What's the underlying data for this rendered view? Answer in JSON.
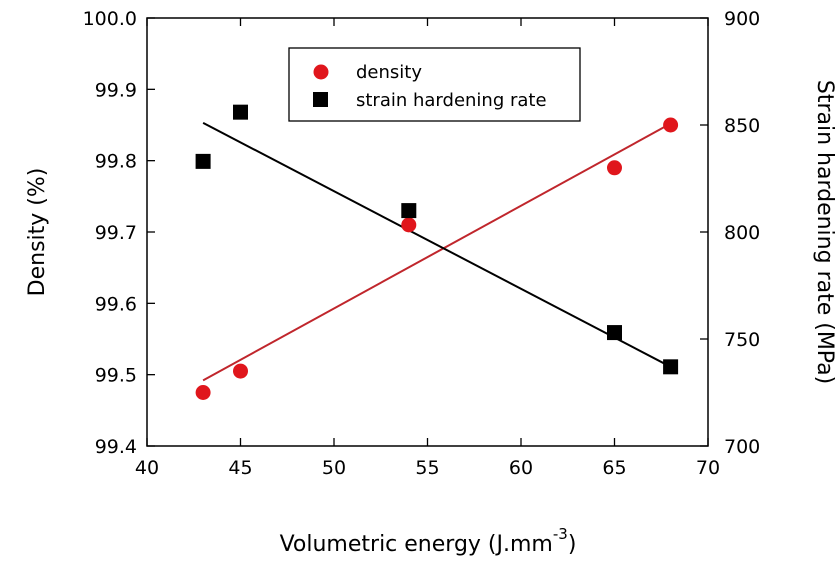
{
  "chart_data": {
    "type": "scatter",
    "title": "",
    "xlabel": "Volumetric energy (J.mm",
    "xlabel_superscript": "-3",
    "xlabel_suffix": ")",
    "ylabel_left": "Density (%)",
    "ylabel_right": "Strain hardening rate (MPa)",
    "xlim": [
      40,
      70
    ],
    "ylim_left": [
      99.4,
      100.0
    ],
    "ylim_right": [
      700,
      900
    ],
    "x_ticks": [
      "40",
      "45",
      "50",
      "55",
      "60",
      "65",
      "70"
    ],
    "y_left_ticks": [
      "99.4",
      "99.5",
      "99.6",
      "99.7",
      "99.8",
      "99.9",
      "100.0"
    ],
    "y_right_ticks": [
      "700",
      "750",
      "800",
      "850",
      "900"
    ],
    "grid": false,
    "legend_position": "top-center",
    "series": [
      {
        "name": "density",
        "axis": "left",
        "marker": "circle",
        "color": "#e0161c",
        "x": [
          43,
          45,
          54,
          65,
          68
        ],
        "y": [
          99.475,
          99.505,
          99.71,
          99.79,
          99.85
        ],
        "fit_line": {
          "x": [
            43,
            68
          ],
          "y": [
            99.492,
            99.852
          ],
          "color": "#c0262c"
        }
      },
      {
        "name": "strain hardening rate",
        "axis": "right",
        "marker": "square",
        "color": "#000000",
        "x": [
          43,
          45,
          54,
          65,
          68
        ],
        "y": [
          833,
          856,
          810,
          753,
          737
        ],
        "fit_line": {
          "x": [
            43,
            68
          ],
          "y": [
            851,
            737
          ],
          "color": "#000000"
        }
      }
    ]
  }
}
